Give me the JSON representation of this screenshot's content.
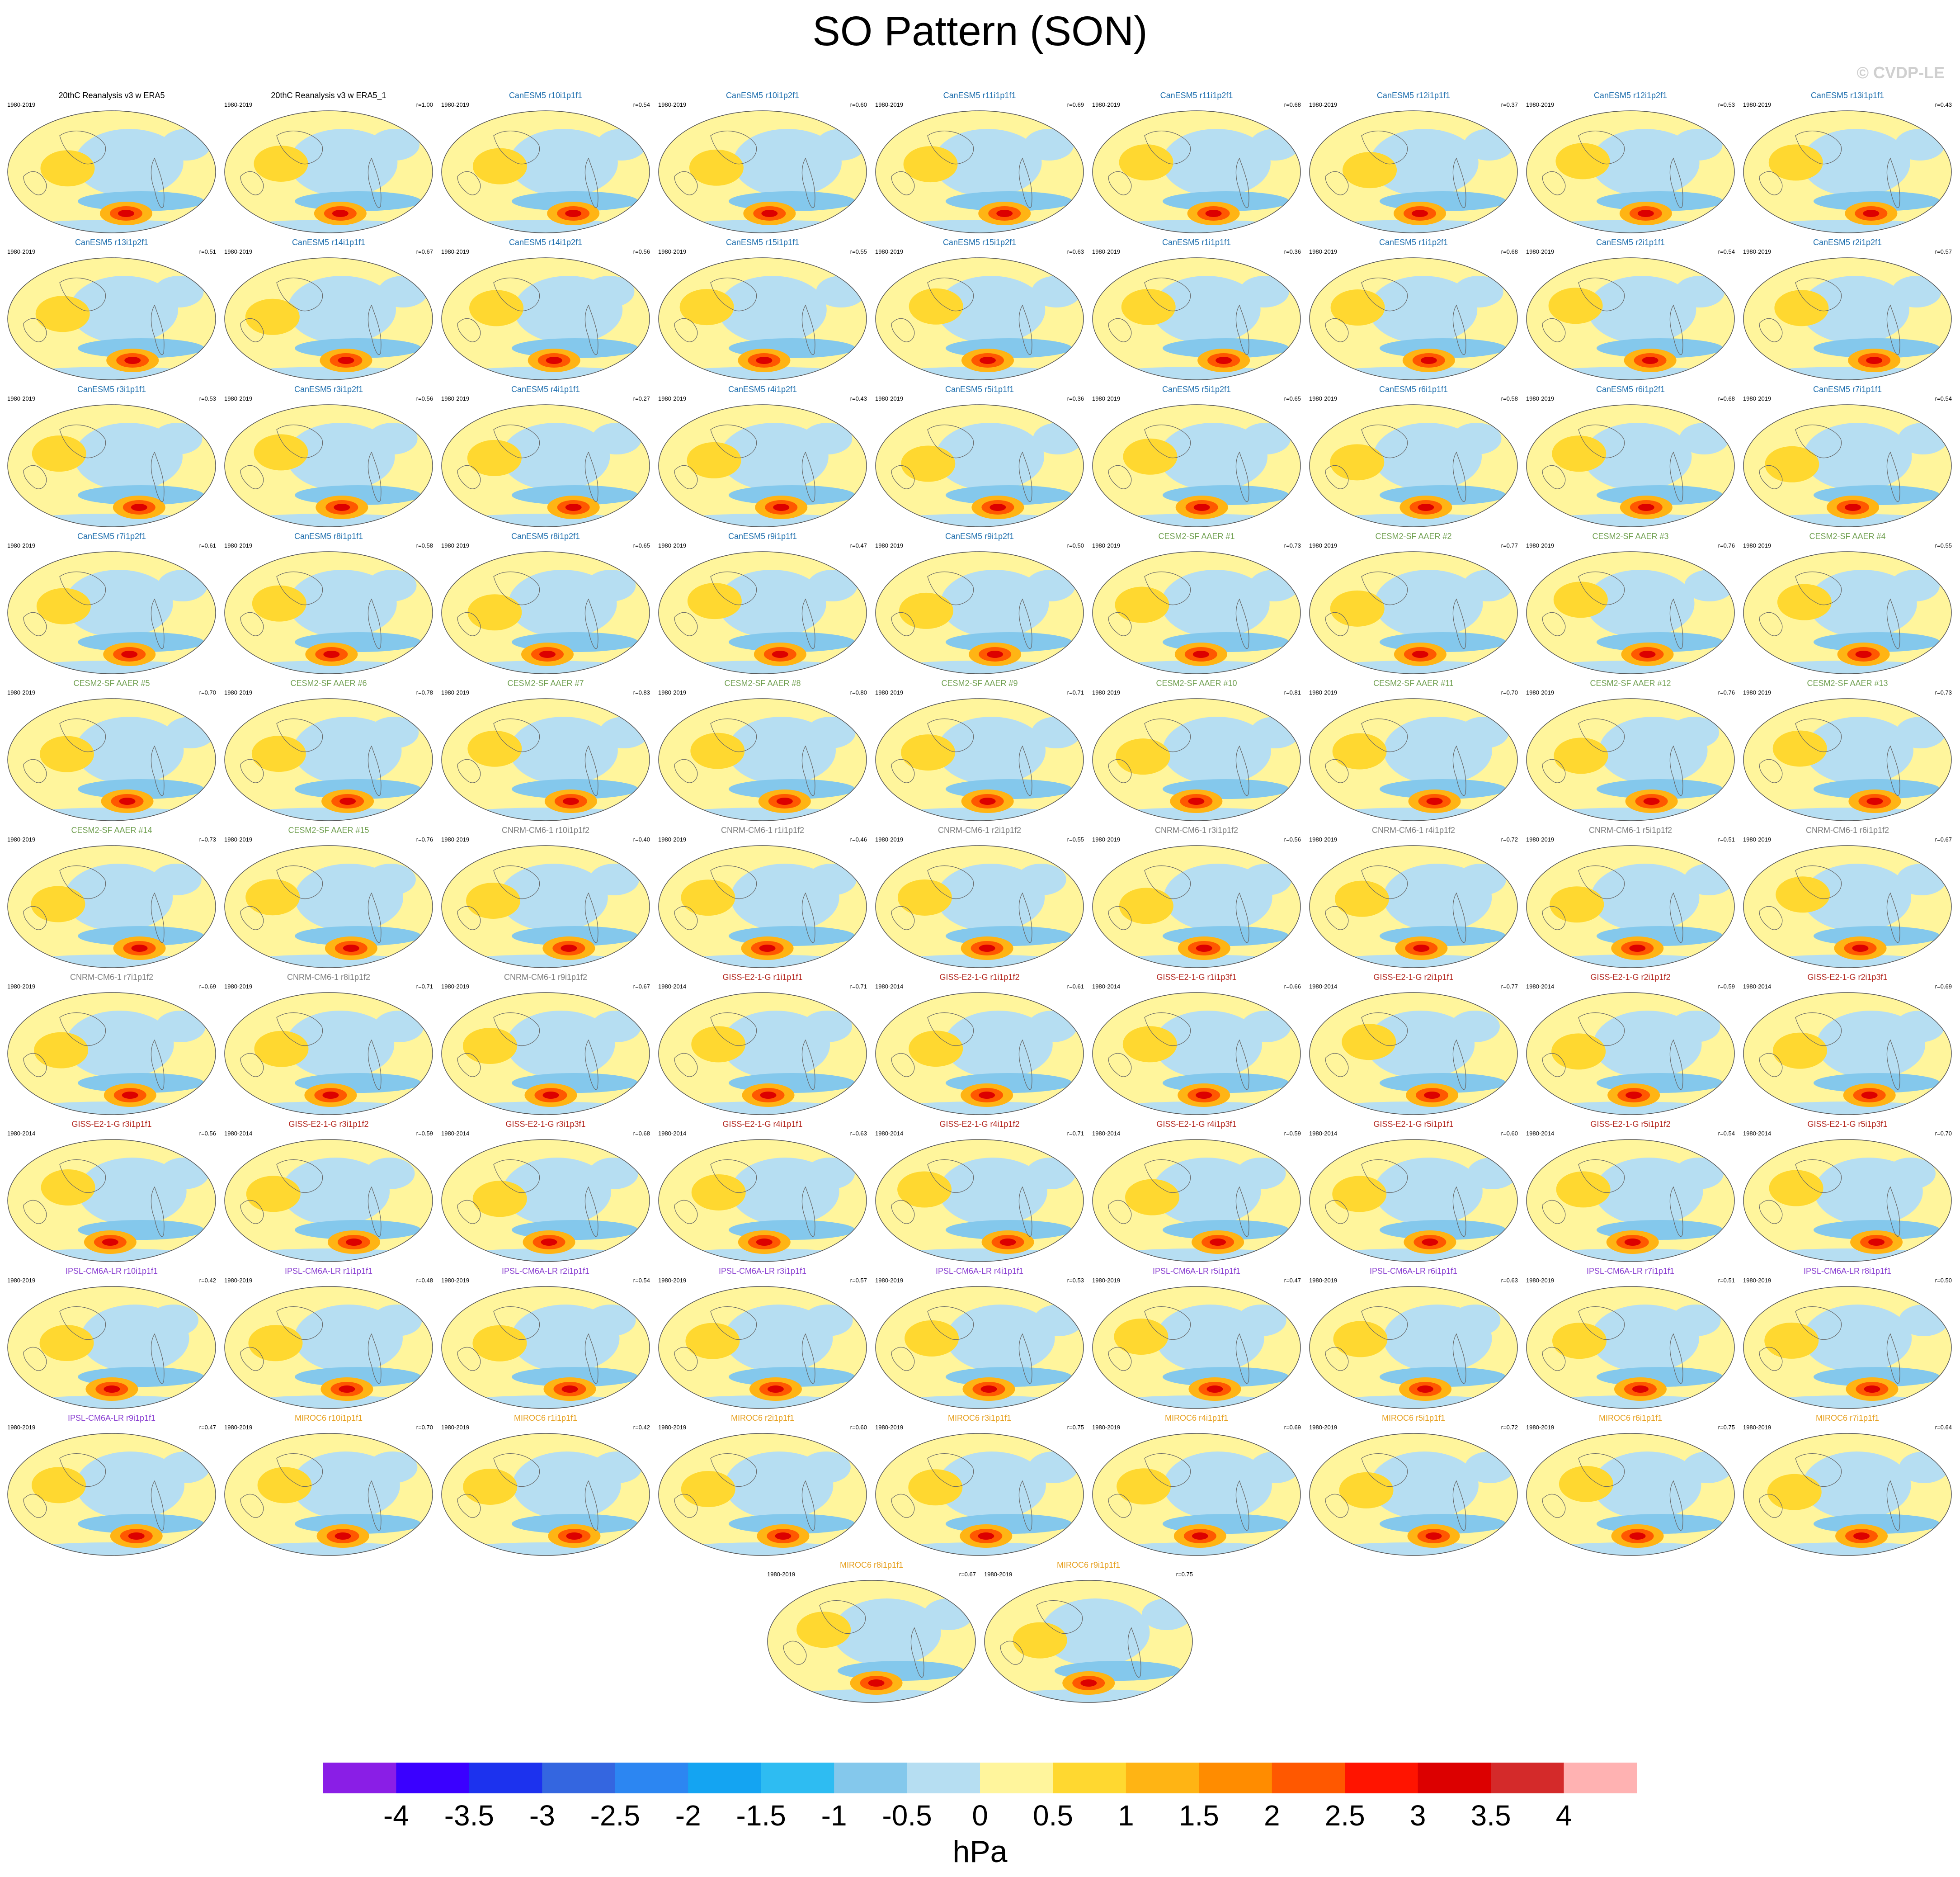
{
  "title": "SO Pattern (SON)",
  "copyright": "© CVDP-LE",
  "colors": {
    "family": {
      "obs": "#000000",
      "canesm": "#1f6fae",
      "cesm": "#6f9f4f",
      "cnrm": "#7e7e7e",
      "giss": "#b3261e",
      "ipsl": "#8a3fd1",
      "miroc": "#e6a020"
    },
    "map_outline": "#555555",
    "coastline": "#666666"
  },
  "panels": [
    {
      "label": "20thC Reanalysis v3 w ERA5",
      "period": "1980-2019",
      "r": "",
      "family": "obs"
    },
    {
      "label": "20thC Reanalysis v3 w ERA5_1",
      "period": "1980-2019",
      "r": "r=1.00",
      "family": "obs"
    },
    {
      "label": "CanESM5 r10i1p1f1",
      "period": "1980-2019",
      "r": "r=0.54",
      "family": "canesm"
    },
    {
      "label": "CanESM5 r10i1p2f1",
      "period": "1980-2019",
      "r": "r=0.60",
      "family": "canesm"
    },
    {
      "label": "CanESM5 r11i1p1f1",
      "period": "1980-2019",
      "r": "r=0.69",
      "family": "canesm"
    },
    {
      "label": "CanESM5 r11i1p2f1",
      "period": "1980-2019",
      "r": "r=0.68",
      "family": "canesm"
    },
    {
      "label": "CanESM5 r12i1p1f1",
      "period": "1980-2019",
      "r": "r=0.37",
      "family": "canesm"
    },
    {
      "label": "CanESM5 r12i1p2f1",
      "period": "1980-2019",
      "r": "r=0.53",
      "family": "canesm"
    },
    {
      "label": "CanESM5 r13i1p1f1",
      "period": "1980-2019",
      "r": "r=0.43",
      "family": "canesm"
    },
    {
      "label": "CanESM5 r13i1p2f1",
      "period": "1980-2019",
      "r": "r=0.51",
      "family": "canesm"
    },
    {
      "label": "CanESM5 r14i1p1f1",
      "period": "1980-2019",
      "r": "r=0.67",
      "family": "canesm"
    },
    {
      "label": "CanESM5 r14i1p2f1",
      "period": "1980-2019",
      "r": "r=0.56",
      "family": "canesm"
    },
    {
      "label": "CanESM5 r15i1p1f1",
      "period": "1980-2019",
      "r": "r=0.55",
      "family": "canesm"
    },
    {
      "label": "CanESM5 r15i1p2f1",
      "period": "1980-2019",
      "r": "r=0.63",
      "family": "canesm"
    },
    {
      "label": "CanESM5 r1i1p1f1",
      "period": "1980-2019",
      "r": "r=0.36",
      "family": "canesm"
    },
    {
      "label": "CanESM5 r1i1p2f1",
      "period": "1980-2019",
      "r": "r=0.68",
      "family": "canesm"
    },
    {
      "label": "CanESM5 r2i1p1f1",
      "period": "1980-2019",
      "r": "r=0.54",
      "family": "canesm"
    },
    {
      "label": "CanESM5 r2i1p2f1",
      "period": "1980-2019",
      "r": "r=0.57",
      "family": "canesm"
    },
    {
      "label": "CanESM5 r3i1p1f1",
      "period": "1980-2019",
      "r": "r=0.53",
      "family": "canesm"
    },
    {
      "label": "CanESM5 r3i1p2f1",
      "period": "1980-2019",
      "r": "r=0.56",
      "family": "canesm"
    },
    {
      "label": "CanESM5 r4i1p1f1",
      "period": "1980-2019",
      "r": "r=0.27",
      "family": "canesm"
    },
    {
      "label": "CanESM5 r4i1p2f1",
      "period": "1980-2019",
      "r": "r=0.43",
      "family": "canesm"
    },
    {
      "label": "CanESM5 r5i1p1f1",
      "period": "1980-2019",
      "r": "r=0.36",
      "family": "canesm"
    },
    {
      "label": "CanESM5 r5i1p2f1",
      "period": "1980-2019",
      "r": "r=0.65",
      "family": "canesm"
    },
    {
      "label": "CanESM5 r6i1p1f1",
      "period": "1980-2019",
      "r": "r=0.58",
      "family": "canesm"
    },
    {
      "label": "CanESM5 r6i1p2f1",
      "period": "1980-2019",
      "r": "r=0.68",
      "family": "canesm"
    },
    {
      "label": "CanESM5 r7i1p1f1",
      "period": "1980-2019",
      "r": "r=0.54",
      "family": "canesm"
    },
    {
      "label": "CanESM5 r7i1p2f1",
      "period": "1980-2019",
      "r": "r=0.61",
      "family": "canesm"
    },
    {
      "label": "CanESM5 r8i1p1f1",
      "period": "1980-2019",
      "r": "r=0.58",
      "family": "canesm"
    },
    {
      "label": "CanESM5 r8i1p2f1",
      "period": "1980-2019",
      "r": "r=0.65",
      "family": "canesm"
    },
    {
      "label": "CanESM5 r9i1p1f1",
      "period": "1980-2019",
      "r": "r=0.47",
      "family": "canesm"
    },
    {
      "label": "CanESM5 r9i1p2f1",
      "period": "1980-2019",
      "r": "r=0.50",
      "family": "canesm"
    },
    {
      "label": "CESM2-SF AAER #1",
      "period": "1980-2019",
      "r": "r=0.73",
      "family": "cesm"
    },
    {
      "label": "CESM2-SF AAER #2",
      "period": "1980-2019",
      "r": "r=0.77",
      "family": "cesm"
    },
    {
      "label": "CESM2-SF AAER #3",
      "period": "1980-2019",
      "r": "r=0.76",
      "family": "cesm"
    },
    {
      "label": "CESM2-SF AAER #4",
      "period": "1980-2019",
      "r": "r=0.55",
      "family": "cesm"
    },
    {
      "label": "CESM2-SF AAER #5",
      "period": "1980-2019",
      "r": "r=0.70",
      "family": "cesm"
    },
    {
      "label": "CESM2-SF AAER #6",
      "period": "1980-2019",
      "r": "r=0.78",
      "family": "cesm"
    },
    {
      "label": "CESM2-SF AAER #7",
      "period": "1980-2019",
      "r": "r=0.83",
      "family": "cesm"
    },
    {
      "label": "CESM2-SF AAER #8",
      "period": "1980-2019",
      "r": "r=0.80",
      "family": "cesm"
    },
    {
      "label": "CESM2-SF AAER #9",
      "period": "1980-2019",
      "r": "r=0.71",
      "family": "cesm"
    },
    {
      "label": "CESM2-SF AAER #10",
      "period": "1980-2019",
      "r": "r=0.81",
      "family": "cesm"
    },
    {
      "label": "CESM2-SF AAER #11",
      "period": "1980-2019",
      "r": "r=0.70",
      "family": "cesm"
    },
    {
      "label": "CESM2-SF AAER #12",
      "period": "1980-2019",
      "r": "r=0.76",
      "family": "cesm"
    },
    {
      "label": "CESM2-SF AAER #13",
      "period": "1980-2019",
      "r": "r=0.73",
      "family": "cesm"
    },
    {
      "label": "CESM2-SF AAER #14",
      "period": "1980-2019",
      "r": "r=0.73",
      "family": "cesm"
    },
    {
      "label": "CESM2-SF AAER #15",
      "period": "1980-2019",
      "r": "r=0.76",
      "family": "cesm"
    },
    {
      "label": "CNRM-CM6-1 r10i1p1f2",
      "period": "1980-2019",
      "r": "r=0.40",
      "family": "cnrm"
    },
    {
      "label": "CNRM-CM6-1 r1i1p1f2",
      "period": "1980-2019",
      "r": "r=0.46",
      "family": "cnrm"
    },
    {
      "label": "CNRM-CM6-1 r2i1p1f2",
      "period": "1980-2019",
      "r": "r=0.55",
      "family": "cnrm"
    },
    {
      "label": "CNRM-CM6-1 r3i1p1f2",
      "period": "1980-2019",
      "r": "r=0.56",
      "family": "cnrm"
    },
    {
      "label": "CNRM-CM6-1 r4i1p1f2",
      "period": "1980-2019",
      "r": "r=0.72",
      "family": "cnrm"
    },
    {
      "label": "CNRM-CM6-1 r5i1p1f2",
      "period": "1980-2019",
      "r": "r=0.51",
      "family": "cnrm"
    },
    {
      "label": "CNRM-CM6-1 r6i1p1f2",
      "period": "1980-2019",
      "r": "r=0.67",
      "family": "cnrm"
    },
    {
      "label": "CNRM-CM6-1 r7i1p1f2",
      "period": "1980-2019",
      "r": "r=0.69",
      "family": "cnrm"
    },
    {
      "label": "CNRM-CM6-1 r8i1p1f2",
      "period": "1980-2019",
      "r": "r=0.71",
      "family": "cnrm"
    },
    {
      "label": "CNRM-CM6-1 r9i1p1f2",
      "period": "1980-2019",
      "r": "r=0.67",
      "family": "cnrm"
    },
    {
      "label": "GISS-E2-1-G r1i1p1f1",
      "period": "1980-2014",
      "r": "r=0.71",
      "family": "giss"
    },
    {
      "label": "GISS-E2-1-G r1i1p1f2",
      "period": "1980-2014",
      "r": "r=0.61",
      "family": "giss"
    },
    {
      "label": "GISS-E2-1-G r1i1p3f1",
      "period": "1980-2014",
      "r": "r=0.66",
      "family": "giss"
    },
    {
      "label": "GISS-E2-1-G r2i1p1f1",
      "period": "1980-2014",
      "r": "r=0.77",
      "family": "giss"
    },
    {
      "label": "GISS-E2-1-G r2i1p1f2",
      "period": "1980-2014",
      "r": "r=0.59",
      "family": "giss"
    },
    {
      "label": "GISS-E2-1-G r2i1p3f1",
      "period": "1980-2014",
      "r": "r=0.69",
      "family": "giss"
    },
    {
      "label": "GISS-E2-1-G r3i1p1f1",
      "period": "1980-2014",
      "r": "r=0.56",
      "family": "giss"
    },
    {
      "label": "GISS-E2-1-G r3i1p1f2",
      "period": "1980-2014",
      "r": "r=0.59",
      "family": "giss"
    },
    {
      "label": "GISS-E2-1-G r3i1p3f1",
      "period": "1980-2014",
      "r": "r=0.68",
      "family": "giss"
    },
    {
      "label": "GISS-E2-1-G r4i1p1f1",
      "period": "1980-2014",
      "r": "r=0.63",
      "family": "giss"
    },
    {
      "label": "GISS-E2-1-G r4i1p1f2",
      "period": "1980-2014",
      "r": "r=0.71",
      "family": "giss"
    },
    {
      "label": "GISS-E2-1-G r4i1p3f1",
      "period": "1980-2014",
      "r": "r=0.59",
      "family": "giss"
    },
    {
      "label": "GISS-E2-1-G r5i1p1f1",
      "period": "1980-2014",
      "r": "r=0.60",
      "family": "giss"
    },
    {
      "label": "GISS-E2-1-G r5i1p1f2",
      "period": "1980-2014",
      "r": "r=0.54",
      "family": "giss"
    },
    {
      "label": "GISS-E2-1-G r5i1p3f1",
      "period": "1980-2014",
      "r": "r=0.70",
      "family": "giss"
    },
    {
      "label": "IPSL-CM6A-LR r10i1p1f1",
      "period": "1980-2019",
      "r": "r=0.42",
      "family": "ipsl"
    },
    {
      "label": "IPSL-CM6A-LR r1i1p1f1",
      "period": "1980-2019",
      "r": "r=0.48",
      "family": "ipsl"
    },
    {
      "label": "IPSL-CM6A-LR r2i1p1f1",
      "period": "1980-2019",
      "r": "r=0.54",
      "family": "ipsl"
    },
    {
      "label": "IPSL-CM6A-LR r3i1p1f1",
      "period": "1980-2019",
      "r": "r=0.57",
      "family": "ipsl"
    },
    {
      "label": "IPSL-CM6A-LR r4i1p1f1",
      "period": "1980-2019",
      "r": "r=0.53",
      "family": "ipsl"
    },
    {
      "label": "IPSL-CM6A-LR r5i1p1f1",
      "period": "1980-2019",
      "r": "r=0.47",
      "family": "ipsl"
    },
    {
      "label": "IPSL-CM6A-LR r6i1p1f1",
      "period": "1980-2019",
      "r": "r=0.63",
      "family": "ipsl"
    },
    {
      "label": "IPSL-CM6A-LR r7i1p1f1",
      "period": "1980-2019",
      "r": "r=0.51",
      "family": "ipsl"
    },
    {
      "label": "IPSL-CM6A-LR r8i1p1f1",
      "period": "1980-2019",
      "r": "r=0.50",
      "family": "ipsl"
    },
    {
      "label": "IPSL-CM6A-LR r9i1p1f1",
      "period": "1980-2019",
      "r": "r=0.47",
      "family": "ipsl"
    },
    {
      "label": "MIROC6 r10i1p1f1",
      "period": "1980-2019",
      "r": "r=0.70",
      "family": "miroc"
    },
    {
      "label": "MIROC6 r1i1p1f1",
      "period": "1980-2019",
      "r": "r=0.42",
      "family": "miroc"
    },
    {
      "label": "MIROC6 r2i1p1f1",
      "period": "1980-2019",
      "r": "r=0.60",
      "family": "miroc"
    },
    {
      "label": "MIROC6 r3i1p1f1",
      "period": "1980-2019",
      "r": "r=0.75",
      "family": "miroc"
    },
    {
      "label": "MIROC6 r4i1p1f1",
      "period": "1980-2019",
      "r": "r=0.69",
      "family": "miroc"
    },
    {
      "label": "MIROC6 r5i1p1f1",
      "period": "1980-2019",
      "r": "r=0.72",
      "family": "miroc"
    },
    {
      "label": "MIROC6 r6i1p1f1",
      "period": "1980-2019",
      "r": "r=0.75",
      "family": "miroc"
    },
    {
      "label": "MIROC6 r7i1p1f1",
      "period": "1980-2019",
      "r": "r=0.64",
      "family": "miroc"
    },
    {
      "label": "MIROC6 r8i1p1f1",
      "period": "1980-2019",
      "r": "r=0.67",
      "family": "miroc"
    },
    {
      "label": "MIROC6 r9i1p1f1",
      "period": "1980-2019",
      "r": "r=0.75",
      "family": "miroc"
    }
  ],
  "colorbar": {
    "colors": [
      "#8a1ee6",
      "#3a00ff",
      "#1c32ee",
      "#3466e0",
      "#2c86f2",
      "#14a4f2",
      "#2ebcf2",
      "#84c8ec",
      "#b6def2",
      "#fff59c",
      "#ffd830",
      "#ffb414",
      "#ff8c00",
      "#ff5800",
      "#ff1400",
      "#dc0000",
      "#d42a2a",
      "#ffb2b2"
    ],
    "labels": [
      "-4",
      "-3.5",
      "-3",
      "-2.5",
      "-2",
      "-1.5",
      "-1",
      "-0.5",
      "0",
      "0.5",
      "1",
      "1.5",
      "2",
      "2.5",
      "3",
      "3.5",
      "4"
    ]
  },
  "units": "hPa"
}
